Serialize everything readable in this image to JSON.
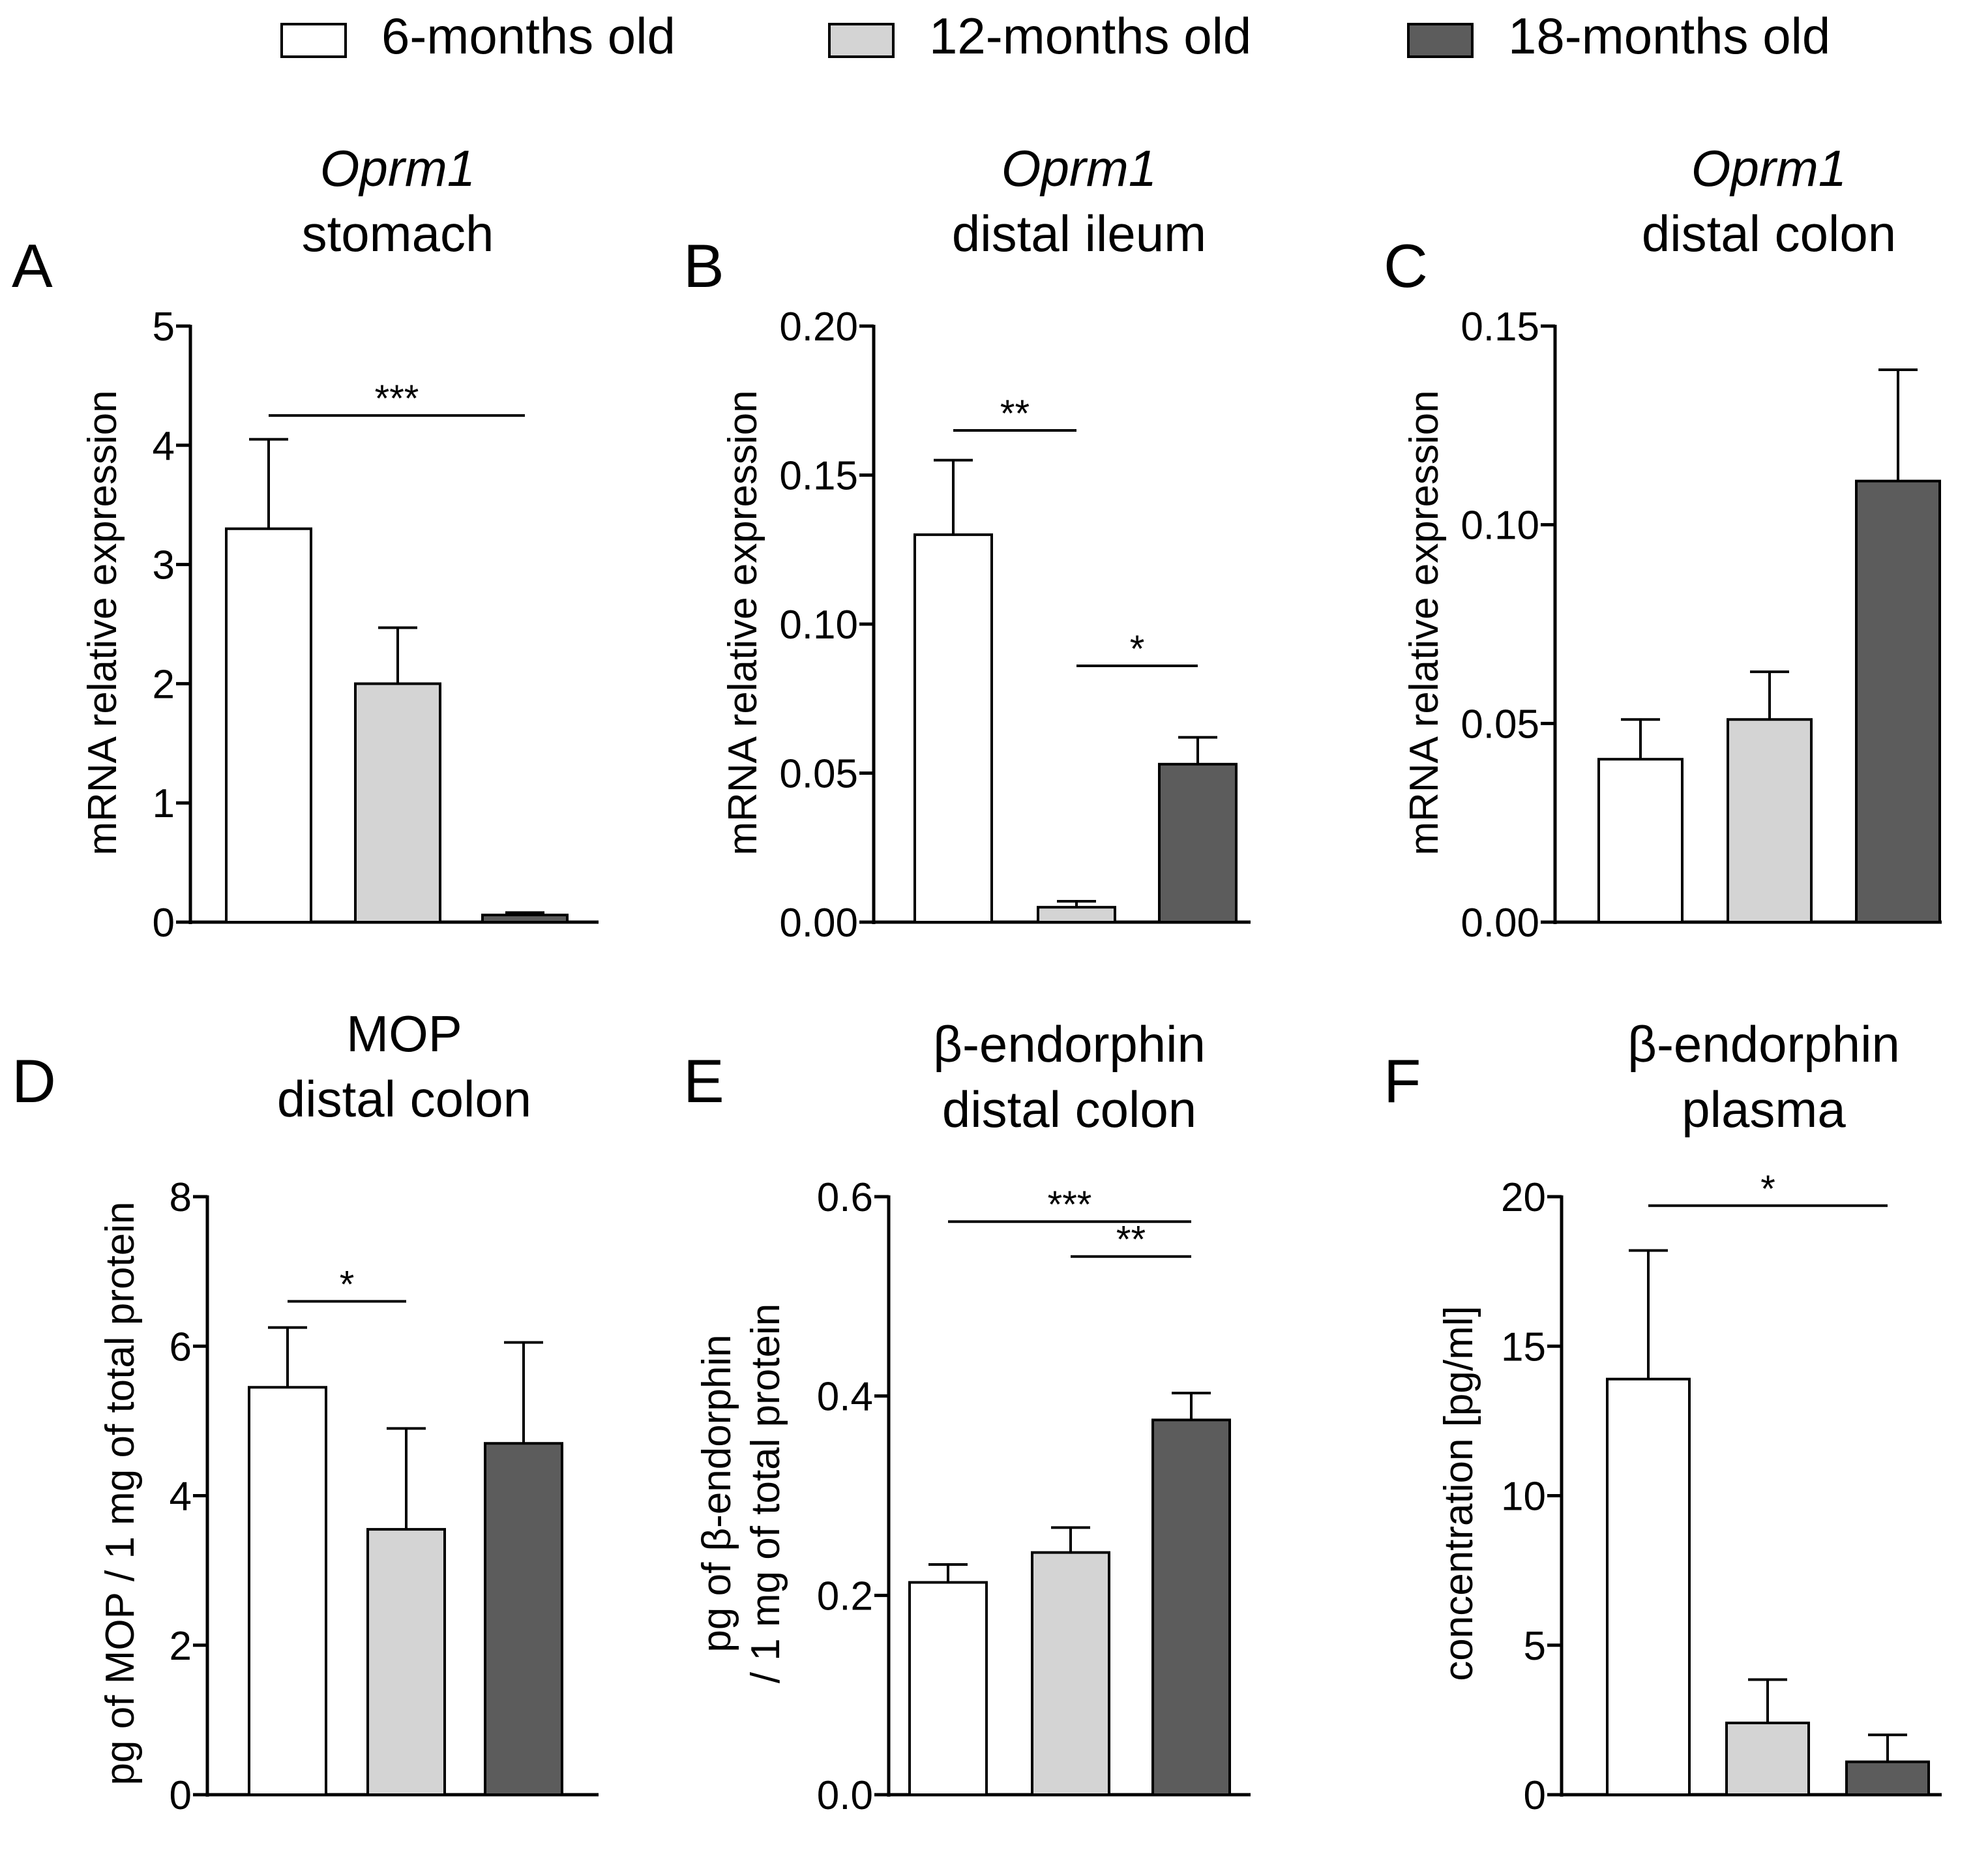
{
  "legend": {
    "items": [
      {
        "label": "6-months old",
        "color": "#ffffff"
      },
      {
        "label": "12-months old",
        "color": "#d4d4d4"
      },
      {
        "label": "18-months old",
        "color": "#5c5c5c"
      }
    ]
  },
  "chart_data": [
    {
      "type": "bar",
      "panel": "A",
      "title_line1": "Oprm1",
      "title_line2": "stomach",
      "title_line1_italic": true,
      "ylabel": "mRNA relative expression",
      "ylim": [
        0,
        5
      ],
      "ticks": [
        0,
        1,
        2,
        3,
        4,
        5
      ],
      "tick_labels": [
        "0",
        "1",
        "2",
        "3",
        "4",
        "5"
      ],
      "categories": [
        "6-months old",
        "12-months old",
        "18-months old"
      ],
      "values": [
        3.3,
        2.0,
        0.06
      ],
      "errors": [
        0.75,
        0.47,
        0.02
      ],
      "significance": [
        {
          "from": 0,
          "to": 2,
          "level": 4.25,
          "label": "***"
        }
      ]
    },
    {
      "type": "bar",
      "panel": "B",
      "title_line1": "Oprm1",
      "title_line2": "distal ileum",
      "title_line1_italic": true,
      "ylabel": "mRNA relative expression",
      "ylim": [
        0,
        0.2
      ],
      "ticks": [
        0,
        0.05,
        0.1,
        0.15,
        0.2
      ],
      "tick_labels": [
        "0.00",
        "0.05",
        "0.10",
        "0.15",
        "0.20"
      ],
      "categories": [
        "6-months old",
        "12-months old",
        "18-months old"
      ],
      "values": [
        0.13,
        0.005,
        0.053
      ],
      "errors": [
        0.025,
        0.002,
        0.009
      ],
      "significance": [
        {
          "from": 0,
          "to": 1,
          "level": 0.165,
          "label": "**"
        },
        {
          "from": 1,
          "to": 2,
          "level": 0.086,
          "label": "*"
        }
      ]
    },
    {
      "type": "bar",
      "panel": "C",
      "title_line1": "Oprm1",
      "title_line2": "distal colon",
      "title_line1_italic": true,
      "ylabel": "mRNA relative expression",
      "ylim": [
        0,
        0.15
      ],
      "ticks": [
        0,
        0.05,
        0.1,
        0.15
      ],
      "tick_labels": [
        "0.00",
        "0.05",
        "0.10",
        "0.15"
      ],
      "categories": [
        "6-months old",
        "12-months old",
        "18-months old"
      ],
      "values": [
        0.041,
        0.051,
        0.111
      ],
      "errors": [
        0.01,
        0.012,
        0.028
      ],
      "significance": []
    },
    {
      "type": "bar",
      "panel": "D",
      "title_line1": "MOP",
      "title_line2": "distal colon",
      "title_line1_italic": false,
      "ylabel": "pg of MOP / 1 mg of total protein",
      "ylim": [
        0,
        8
      ],
      "ticks": [
        0,
        2,
        4,
        6,
        8
      ],
      "tick_labels": [
        "0",
        "2",
        "4",
        "6",
        "8"
      ],
      "categories": [
        "6-months old",
        "12-months old",
        "18-months old"
      ],
      "values": [
        5.45,
        3.55,
        4.7
      ],
      "errors": [
        0.8,
        1.35,
        1.35
      ],
      "significance": [
        {
          "from": 0,
          "to": 1,
          "level": 6.6,
          "label": "*"
        }
      ]
    },
    {
      "type": "bar",
      "panel": "E",
      "title_line1": "β-endorphin",
      "title_line2": "distal colon",
      "title_line1_italic": false,
      "ylabel_line1": "pg of β-endorphin",
      "ylabel_line2": "/ 1 mg of total protein",
      "ylim": [
        0,
        0.6
      ],
      "ticks": [
        0,
        0.2,
        0.4,
        0.6
      ],
      "tick_labels": [
        "0.0",
        "0.2",
        "0.4",
        "0.6"
      ],
      "categories": [
        "6-months old",
        "12-months old",
        "18-months old"
      ],
      "values": [
        0.213,
        0.243,
        0.376
      ],
      "errors": [
        0.018,
        0.025,
        0.027
      ],
      "significance": [
        {
          "from": 0,
          "to": 2,
          "level": 0.575,
          "label": "***"
        },
        {
          "from": 1,
          "to": 2,
          "level": 0.54,
          "label": "**"
        }
      ]
    },
    {
      "type": "bar",
      "panel": "F",
      "title_line1": "β-endorphin",
      "title_line2": "plasma",
      "title_line1_italic": false,
      "ylabel": "concentration [pg/ml]",
      "ylim": [
        0,
        20
      ],
      "ticks": [
        0,
        5,
        10,
        15,
        20
      ],
      "tick_labels": [
        "0",
        "5",
        "10",
        "15",
        "20"
      ],
      "categories": [
        "6-months old",
        "12-months old",
        "18-months old"
      ],
      "values": [
        13.9,
        2.4,
        1.1
      ],
      "errors": [
        4.3,
        1.45,
        0.9
      ],
      "significance": [
        {
          "from": 0,
          "to": 2,
          "level": 19.7,
          "label": "*"
        }
      ]
    }
  ]
}
